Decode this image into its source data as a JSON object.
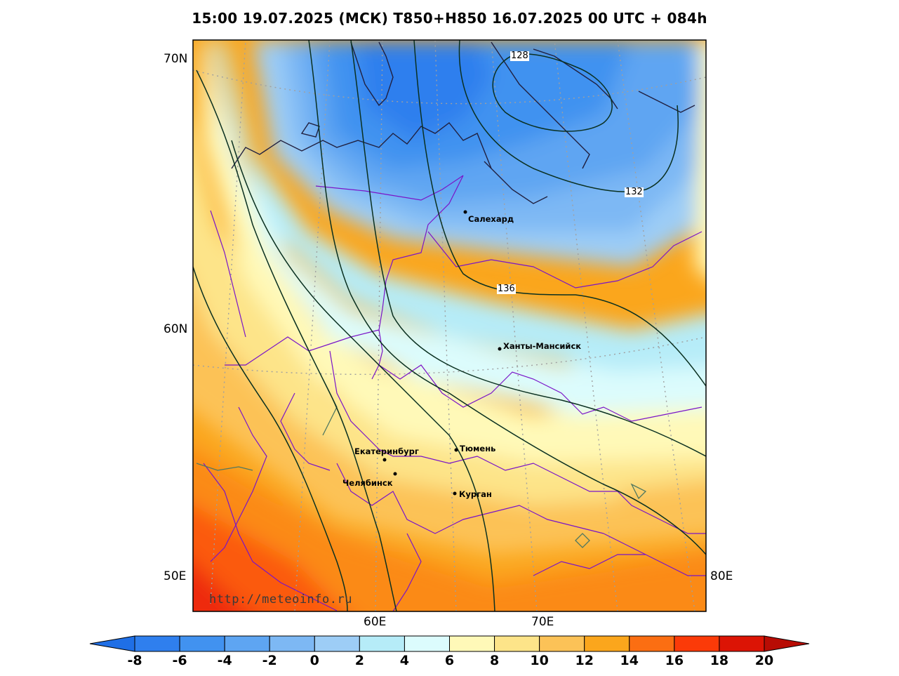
{
  "title": "15:00 19.07.2025 (МСК) T850+H850 16.07.2025 00 UTC + 084h",
  "lat_labels": [
    "70N",
    "60N",
    "50E"
  ],
  "lon_labels": [
    "60E",
    "70E",
    "80E"
  ],
  "cities": [
    {
      "name": "Салехард"
    },
    {
      "name": "Ханты-Мансийск"
    },
    {
      "name": "Екатеринбург"
    },
    {
      "name": "Тюмень"
    },
    {
      "name": "Челябинск"
    },
    {
      "name": "Курган"
    }
  ],
  "contour_labels": [
    "128",
    "132",
    "136"
  ],
  "watermark": "http://meteoinfo.ru",
  "colorbar": {
    "ticks": [
      "-8",
      "-6",
      "-4",
      "-2",
      "0",
      "2",
      "4",
      "6",
      "8",
      "10",
      "12",
      "14",
      "16",
      "18",
      "20"
    ],
    "colors": [
      "#1f6fe6",
      "#2f7fee",
      "#4192f0",
      "#5ea5f2",
      "#7db8f4",
      "#9dcdf6",
      "#b6ecf8",
      "#dcfcfd",
      "#fff9b8",
      "#fde489",
      "#fcc257",
      "#fba61c",
      "#fb6e12",
      "#fb3a08",
      "#dc1405",
      "#b80c04"
    ]
  }
}
